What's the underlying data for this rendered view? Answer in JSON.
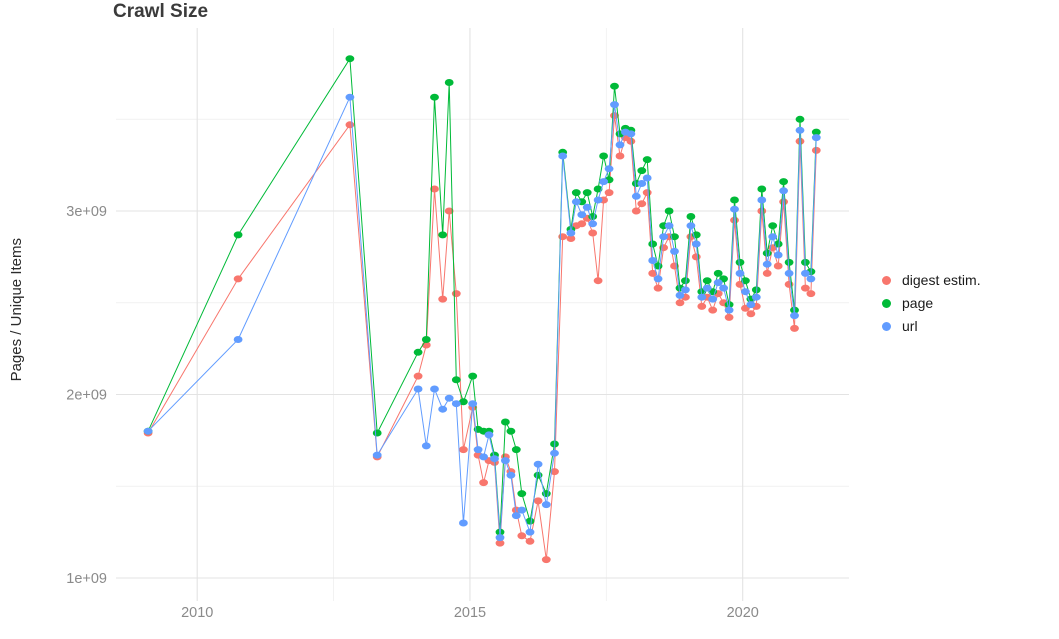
{
  "page_background": "#ffffff",
  "chart_data": {
    "type": "line",
    "title": "Crawl Size",
    "xlabel": "",
    "ylabel": "Pages / Unique Items",
    "grid": true,
    "legend_position": "right",
    "x_axis": {
      "ticks": [
        2010,
        2015,
        2020
      ],
      "labels": [
        "2010",
        "2015",
        "2020"
      ],
      "range": [
        2008.55,
        2021.95
      ],
      "minor_gridlines": [
        2012.5,
        2017.5
      ]
    },
    "y_axis": {
      "ticks": [
        1000000000.0,
        2000000000.0,
        3000000000.0
      ],
      "labels": [
        "1e+09",
        "2e+09",
        "3e+09"
      ],
      "range": [
        930000000.0,
        3950000000.0
      ],
      "minor_gridlines": [
        1500000000.0,
        2500000000.0,
        3500000000.0
      ]
    },
    "x": [
      2009.1,
      2010.75,
      2012.8,
      2013.3,
      2014.05,
      2014.2,
      2014.35,
      2014.5,
      2014.62,
      2014.75,
      2014.88,
      2015.05,
      2015.15,
      2015.25,
      2015.35,
      2015.45,
      2015.55,
      2015.65,
      2015.75,
      2015.85,
      2015.95,
      2016.1,
      2016.25,
      2016.4,
      2016.55,
      2016.7,
      2016.85,
      2016.95,
      2017.05,
      2017.15,
      2017.25,
      2017.35,
      2017.45,
      2017.55,
      2017.65,
      2017.75,
      2017.85,
      2017.95,
      2018.05,
      2018.15,
      2018.25,
      2018.35,
      2018.45,
      2018.55,
      2018.65,
      2018.75,
      2018.85,
      2018.95,
      2019.05,
      2019.15,
      2019.25,
      2019.35,
      2019.45,
      2019.55,
      2019.65,
      2019.75,
      2019.85,
      2019.95,
      2020.05,
      2020.15,
      2020.25,
      2020.35,
      2020.45,
      2020.55,
      2020.65,
      2020.75,
      2020.85,
      2020.95,
      2021.05,
      2021.15,
      2021.25,
      2021.35
    ],
    "series": [
      {
        "name": "digest estim.",
        "color": "#F8766D",
        "values": [
          1790000000.0,
          2630000000.0,
          3470000000.0,
          1660000000.0,
          2100000000.0,
          2270000000.0,
          3120000000.0,
          2520000000.0,
          3000000000.0,
          2550000000.0,
          1700000000.0,
          1930000000.0,
          1670000000.0,
          1520000000.0,
          1640000000.0,
          1630000000.0,
          1190000000.0,
          1660000000.0,
          1580000000.0,
          1370000000.0,
          1230000000.0,
          1200000000.0,
          1420000000.0,
          1100000000.0,
          1580000000.0,
          2860000000.0,
          2850000000.0,
          2920000000.0,
          2930000000.0,
          2960000000.0,
          2880000000.0,
          2620000000.0,
          3060000000.0,
          3100000000.0,
          3520000000.0,
          3300000000.0,
          3400000000.0,
          3380000000.0,
          3000000000.0,
          3040000000.0,
          3100000000.0,
          2660000000.0,
          2580000000.0,
          2800000000.0,
          2860000000.0,
          2700000000.0,
          2500000000.0,
          2530000000.0,
          2860000000.0,
          2750000000.0,
          2480000000.0,
          2530000000.0,
          2460000000.0,
          2550000000.0,
          2500000000.0,
          2420000000.0,
          2950000000.0,
          2600000000.0,
          2470000000.0,
          2440000000.0,
          2480000000.0,
          3000000000.0,
          2660000000.0,
          2800000000.0,
          2700000000.0,
          3050000000.0,
          2600000000.0,
          2360000000.0,
          3380000000.0,
          2580000000.0,
          2550000000.0,
          3330000000.0
        ]
      },
      {
        "name": "page",
        "color": "#00BA38",
        "values": [
          1800000000.0,
          2870000000.0,
          3830000000.0,
          1790000000.0,
          2230000000.0,
          2300000000.0,
          3620000000.0,
          2870000000.0,
          3700000000.0,
          2080000000.0,
          1960000000.0,
          2100000000.0,
          1810000000.0,
          1800000000.0,
          1800000000.0,
          1670000000.0,
          1250000000.0,
          1850000000.0,
          1800000000.0,
          1700000000.0,
          1460000000.0,
          1310000000.0,
          1560000000.0,
          1460000000.0,
          1730000000.0,
          3320000000.0,
          2900000000.0,
          3100000000.0,
          3050000000.0,
          3100000000.0,
          2970000000.0,
          3120000000.0,
          3300000000.0,
          3170000000.0,
          3680000000.0,
          3420000000.0,
          3450000000.0,
          3440000000.0,
          3150000000.0,
          3220000000.0,
          3280000000.0,
          2820000000.0,
          2700000000.0,
          2920000000.0,
          3000000000.0,
          2860000000.0,
          2580000000.0,
          2620000000.0,
          2970000000.0,
          2870000000.0,
          2560000000.0,
          2620000000.0,
          2560000000.0,
          2660000000.0,
          2630000000.0,
          2490000000.0,
          3060000000.0,
          2720000000.0,
          2620000000.0,
          2520000000.0,
          2570000000.0,
          3120000000.0,
          2770000000.0,
          2920000000.0,
          2820000000.0,
          3160000000.0,
          2720000000.0,
          2460000000.0,
          3500000000.0,
          2720000000.0,
          2670000000.0,
          3430000000.0
        ]
      },
      {
        "name": "url",
        "color": "#619CFF",
        "values": [
          1800000000.0,
          2300000000.0,
          3620000000.0,
          1670000000.0,
          2030000000.0,
          1720000000.0,
          2030000000.0,
          1920000000.0,
          1980000000.0,
          1950000000.0,
          1300000000.0,
          1950000000.0,
          1700000000.0,
          1660000000.0,
          1780000000.0,
          1650000000.0,
          1220000000.0,
          1640000000.0,
          1560000000.0,
          1340000000.0,
          1370000000.0,
          1250000000.0,
          1620000000.0,
          1400000000.0,
          1680000000.0,
          3300000000.0,
          2880000000.0,
          3050000000.0,
          2980000000.0,
          3020000000.0,
          2930000000.0,
          3060000000.0,
          3160000000.0,
          3230000000.0,
          3580000000.0,
          3360000000.0,
          3430000000.0,
          3420000000.0,
          3080000000.0,
          3150000000.0,
          3180000000.0,
          2730000000.0,
          2630000000.0,
          2860000000.0,
          2920000000.0,
          2780000000.0,
          2540000000.0,
          2570000000.0,
          2920000000.0,
          2820000000.0,
          2530000000.0,
          2580000000.0,
          2520000000.0,
          2610000000.0,
          2580000000.0,
          2460000000.0,
          3010000000.0,
          2660000000.0,
          2560000000.0,
          2490000000.0,
          2530000000.0,
          3060000000.0,
          2710000000.0,
          2860000000.0,
          2760000000.0,
          3110000000.0,
          2660000000.0,
          2430000000.0,
          3440000000.0,
          2660000000.0,
          2630000000.0,
          3400000000.0
        ]
      }
    ]
  }
}
